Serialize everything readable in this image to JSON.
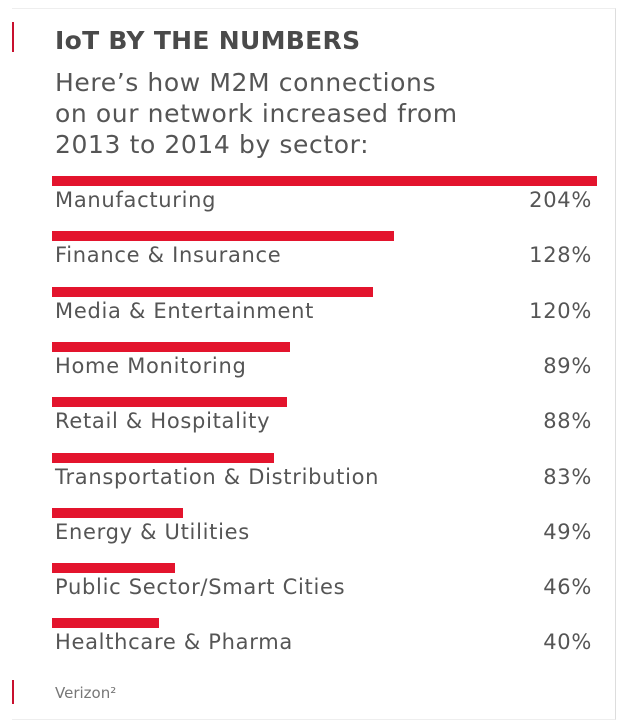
{
  "chart_data": {
    "type": "bar",
    "orientation": "horizontal",
    "title": "IoT BY THE NUMBERS",
    "subtitle": [
      "Here’s how M2M connections",
      "on our network increased from",
      "2013 to 2014 by sector:"
    ],
    "categories": [
      "Manufacturing",
      "Finance & Insurance",
      "Media & Entertainment",
      "Home Monitoring",
      "Retail & Hospitality",
      "Transportation & Distribution",
      "Energy & Utilities",
      "Public Sector/Smart Cities",
      "Healthcare & Pharma"
    ],
    "values": [
      204,
      128,
      120,
      89,
      88,
      83,
      49,
      46,
      40
    ],
    "value_labels": [
      "204%",
      "128%",
      "120%",
      "89%",
      "88%",
      "83%",
      "49%",
      "46%",
      "40%"
    ],
    "color": "#e3142d",
    "source": "Verizon²"
  }
}
